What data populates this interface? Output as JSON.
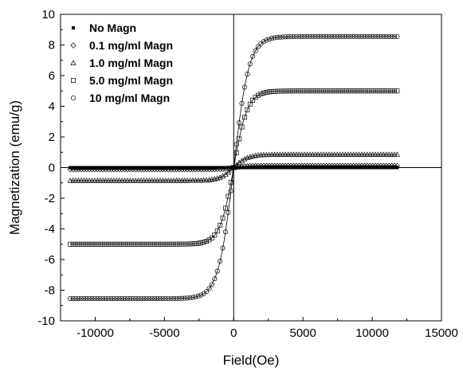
{
  "chart_data": {
    "type": "scatter",
    "title": "",
    "xlabel": "Field(Oe)",
    "ylabel": "Magnetization (emu/g)",
    "xlim": [
      -12500,
      15000
    ],
    "ylim": [
      -10,
      10
    ],
    "xticks": [
      -10000,
      -5000,
      0,
      5000,
      10000,
      15000
    ],
    "yticks": [
      -10,
      -8,
      -6,
      -4,
      -2,
      0,
      2,
      4,
      6,
      8,
      10
    ],
    "xtick_labels": [
      "-10000",
      "-5000",
      "0",
      "5000",
      "10000",
      "15000"
    ],
    "ytick_labels": [
      "-10",
      "-8",
      "-6",
      "-4",
      "-2",
      "0",
      "2",
      "4",
      "6",
      "8",
      "10"
    ],
    "grid": false,
    "zero_lines": true,
    "legend_position": "top-left",
    "marker_color": "#000000",
    "x_range": [
      -11800,
      11800
    ],
    "series": [
      {
        "name": "No Magn",
        "marker": "filled-square",
        "ms": 0.0,
        "h0": 1000,
        "x": [
          -11800,
          -5000,
          -1000,
          0,
          1000,
          5000,
          11800
        ],
        "y": [
          0,
          0,
          0,
          0,
          0,
          0,
          0
        ]
      },
      {
        "name": "0.1 mg/ml Magn",
        "marker": "diamond",
        "ms": 0.12,
        "h0": 900,
        "x": [
          -11800,
          -5000,
          -1000,
          0,
          1000,
          5000,
          11800
        ],
        "y": [
          -0.12,
          -0.11,
          -0.08,
          0,
          0.08,
          0.11,
          0.12
        ]
      },
      {
        "name": "1.0 mg/ml Magn",
        "marker": "triangle",
        "ms": 0.85,
        "h0": 1000,
        "x": [
          -11800,
          -5000,
          -1000,
          0,
          1000,
          5000,
          11800
        ],
        "y": [
          -0.85,
          -0.82,
          -0.6,
          0,
          0.6,
          0.82,
          0.85
        ]
      },
      {
        "name": "5.0 mg/ml Magn",
        "marker": "square",
        "ms": 5.0,
        "h0": 1000,
        "x": [
          -11800,
          -5000,
          -1000,
          0,
          1000,
          5000,
          11800
        ],
        "y": [
          -5.0,
          -4.8,
          -3.6,
          0,
          3.6,
          4.8,
          5.0
        ]
      },
      {
        "name": "10 mg/ml Magn",
        "marker": "circle",
        "ms": 8.55,
        "h0": 1100,
        "x": [
          -11800,
          -5000,
          -1000,
          0,
          1000,
          5000,
          11800
        ],
        "y": [
          -8.55,
          -8.15,
          -6.1,
          0,
          6.1,
          8.15,
          8.55
        ]
      }
    ]
  }
}
